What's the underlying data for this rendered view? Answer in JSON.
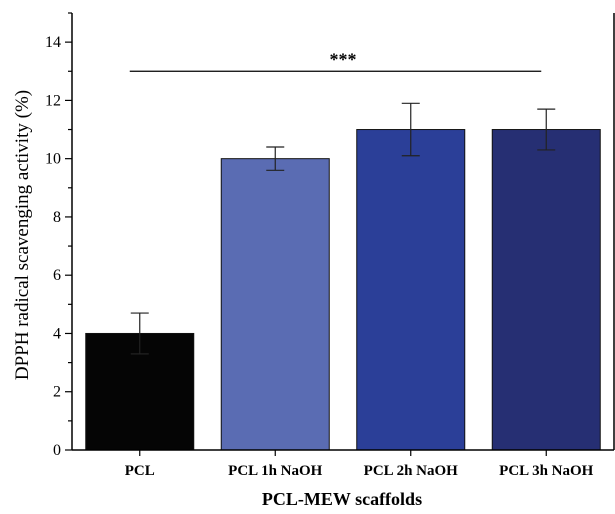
{
  "chart_data": {
    "type": "bar",
    "categories": [
      "PCL",
      "PCL 1h NaOH",
      "PCL 2h NaOH",
      "PCL 3h NaOH"
    ],
    "values": [
      4.0,
      10.0,
      11.0,
      11.0
    ],
    "errors": [
      0.7,
      0.4,
      0.9,
      0.7
    ],
    "colors": [
      "#050505",
      "#5a6cb3",
      "#2b3f98",
      "#262f73"
    ],
    "title": "",
    "xlabel": "PCL-MEW scaffolds",
    "ylabel": "DPPH radical scavenging activity (%)",
    "ylim": [
      0,
      15
    ],
    "yticks": [
      0,
      2,
      4,
      6,
      8,
      10,
      12,
      14
    ],
    "grid": false,
    "significance": {
      "label": "***",
      "y": 13.0,
      "from_category": 0,
      "to_category": 3
    }
  }
}
